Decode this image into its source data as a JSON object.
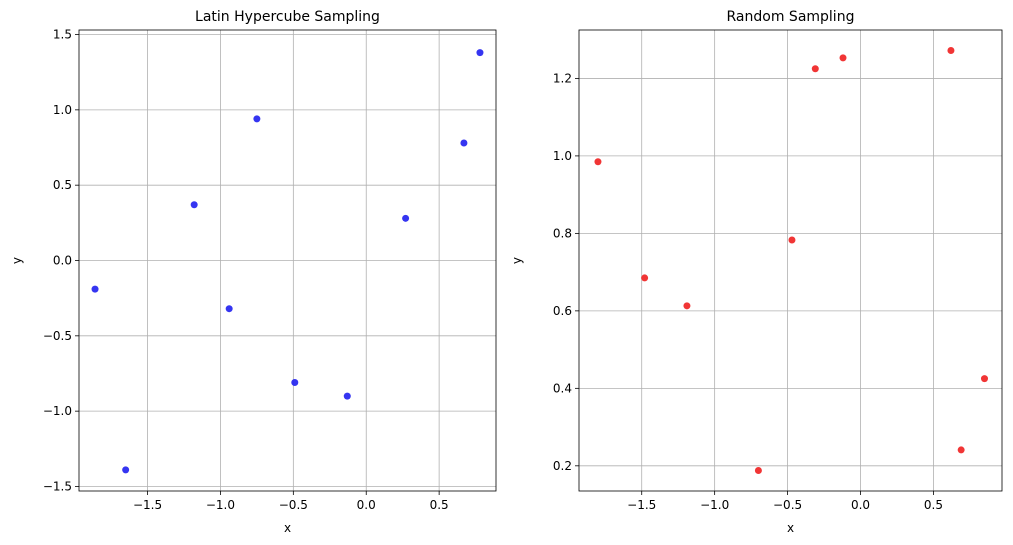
{
  "chart_data": [
    {
      "type": "scatter",
      "title": "Latin Hypercube Sampling",
      "xlabel": "x",
      "ylabel": "y",
      "xlim": [
        -1.97,
        0.89
      ],
      "ylim": [
        -1.53,
        1.53
      ],
      "xticks": [
        -1.5,
        -1.0,
        -0.5,
        0.0,
        0.5
      ],
      "xtick_labels": [
        "−1.5",
        "−1.0",
        "−0.5",
        "0.0",
        "0.5"
      ],
      "yticks": [
        -1.5,
        -1.0,
        -0.5,
        0.0,
        0.5,
        1.0,
        1.5
      ],
      "ytick_labels": [
        "−1.5",
        "−1.0",
        "−0.5",
        "0.0",
        "0.5",
        "1.0",
        "1.5"
      ],
      "grid": true,
      "color": "#1f1fef",
      "points": [
        {
          "x": -1.86,
          "y": -0.19
        },
        {
          "x": -1.65,
          "y": -1.39
        },
        {
          "x": -1.18,
          "y": 0.37
        },
        {
          "x": -0.94,
          "y": -0.32
        },
        {
          "x": -0.75,
          "y": 0.94
        },
        {
          "x": -0.49,
          "y": -0.81
        },
        {
          "x": -0.13,
          "y": -0.9
        },
        {
          "x": 0.27,
          "y": 0.28
        },
        {
          "x": 0.67,
          "y": 0.78
        },
        {
          "x": 0.78,
          "y": 1.38
        }
      ]
    },
    {
      "type": "scatter",
      "title": "Random Sampling",
      "xlabel": "x",
      "ylabel": "y",
      "xlim": [
        -1.93,
        0.97
      ],
      "ylim": [
        0.135,
        1.325
      ],
      "xticks": [
        -1.5,
        -1.0,
        -0.5,
        0.0,
        0.5
      ],
      "xtick_labels": [
        "−1.5",
        "−1.0",
        "−0.5",
        "0.0",
        "0.5"
      ],
      "yticks": [
        0.2,
        0.4,
        0.6,
        0.8,
        1.0,
        1.2
      ],
      "ytick_labels": [
        "0.2",
        "0.4",
        "0.6",
        "0.8",
        "1.0",
        "1.2"
      ],
      "grid": true,
      "color": "#ef1f1f",
      "points": [
        {
          "x": -1.8,
          "y": 0.985
        },
        {
          "x": -1.48,
          "y": 0.685
        },
        {
          "x": -1.19,
          "y": 0.613
        },
        {
          "x": -0.7,
          "y": 0.188
        },
        {
          "x": -0.47,
          "y": 0.783
        },
        {
          "x": -0.31,
          "y": 1.225
        },
        {
          "x": -0.12,
          "y": 1.253
        },
        {
          "x": 0.62,
          "y": 1.272
        },
        {
          "x": 0.69,
          "y": 0.241
        },
        {
          "x": 0.85,
          "y": 0.425
        }
      ]
    }
  ]
}
